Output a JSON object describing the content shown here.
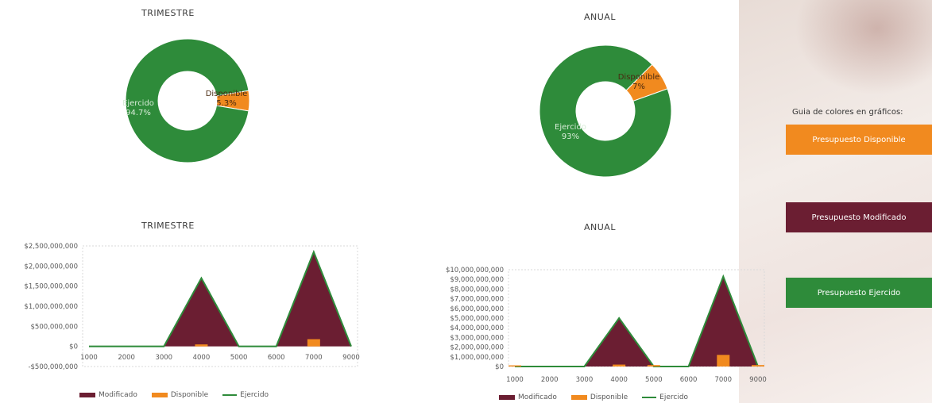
{
  "colors": {
    "modificado": "#6b1e32",
    "disponible": "#f18a1f",
    "ejercido": "#2e8b3a"
  },
  "guide": {
    "title": "Guia de colores en gráficos:",
    "items": [
      {
        "label": "Presupuesto Disponible",
        "color": "#f18a1f"
      },
      {
        "label": "Presupuesto Modificado",
        "color": "#6b1e32"
      },
      {
        "label": "Presupuesto Ejercido",
        "color": "#2e8b3a"
      }
    ]
  },
  "chart_data": [
    {
      "type": "pie",
      "variant": "doughnut",
      "title": "TRIMESTRE",
      "slices": [
        {
          "label": "Disponible",
          "value": 5.3,
          "display": "5.3%",
          "color": "#f18a1f"
        },
        {
          "label": "Ejercido",
          "value": 94.7,
          "display": "94.7%",
          "color": "#2e8b3a"
        }
      ]
    },
    {
      "type": "pie",
      "variant": "doughnut",
      "title": "ANUAL",
      "slices": [
        {
          "label": "Disponible",
          "value": 7,
          "display": "7%",
          "color": "#f18a1f"
        },
        {
          "label": "Ejercido",
          "value": 93,
          "display": "93%",
          "color": "#2e8b3a"
        }
      ]
    },
    {
      "type": "area",
      "title": "TRIMESTRE",
      "categories": [
        "1000",
        "2000",
        "3000",
        "4000",
        "5000",
        "6000",
        "7000",
        "9000"
      ],
      "series": [
        {
          "name": "Modificado",
          "style": "area",
          "color": "#6b1e32",
          "values": [
            0,
            0,
            0,
            1700000000,
            0,
            0,
            2350000000,
            0
          ]
        },
        {
          "name": "Disponible",
          "style": "bar",
          "color": "#f18a1f",
          "values": [
            0,
            0,
            0,
            50000000,
            0,
            0,
            180000000,
            0
          ]
        },
        {
          "name": "Ejercido",
          "style": "line",
          "color": "#2e8b3a",
          "values": [
            0,
            0,
            0,
            1650000000,
            0,
            0,
            2170000000,
            0
          ]
        }
      ],
      "ylim": [
        -500000000,
        2500000000
      ],
      "yticks": [
        -500000000,
        0,
        500000000,
        1000000000,
        1500000000,
        2000000000,
        2500000000
      ],
      "ytick_labels": [
        "-$500,000,000",
        "$0",
        "$500,000,000",
        "$1,000,000,000",
        "$1,500,000,000",
        "$2,000,000,000",
        "$2,500,000,000"
      ],
      "legend": "bottom"
    },
    {
      "type": "area",
      "title": "ANUAL",
      "categories": [
        "1000",
        "2000",
        "3000",
        "4000",
        "5000",
        "6000",
        "7000",
        "9000"
      ],
      "series": [
        {
          "name": "Modificado",
          "style": "area",
          "color": "#6b1e32",
          "values": [
            0,
            0,
            0,
            5000000000,
            0,
            0,
            9300000000,
            0
          ]
        },
        {
          "name": "Disponible",
          "style": "bar",
          "color": "#f18a1f",
          "values": [
            120000000,
            0,
            0,
            200000000,
            150000000,
            0,
            1200000000,
            150000000
          ]
        },
        {
          "name": "Ejercido",
          "style": "line",
          "color": "#2e8b3a",
          "values": [
            0,
            0,
            0,
            4800000000,
            0,
            0,
            8200000000,
            0
          ]
        }
      ],
      "ylim": [
        0,
        10000000000
      ],
      "yticks": [
        0,
        1000000000,
        2000000000,
        3000000000,
        4000000000,
        5000000000,
        6000000000,
        7000000000,
        8000000000,
        9000000000,
        10000000000
      ],
      "ytick_labels": [
        "$0",
        "$1,000,000,000",
        "$2,000,000,000",
        "$3,000,000,000",
        "$4,000,000,000",
        "$5,000,000,000",
        "$6,000,000,000",
        "$7,000,000,000",
        "$8,000,000,000",
        "$9,000,000,000",
        "$10,000,000,000"
      ],
      "legend": "bottom"
    }
  ]
}
